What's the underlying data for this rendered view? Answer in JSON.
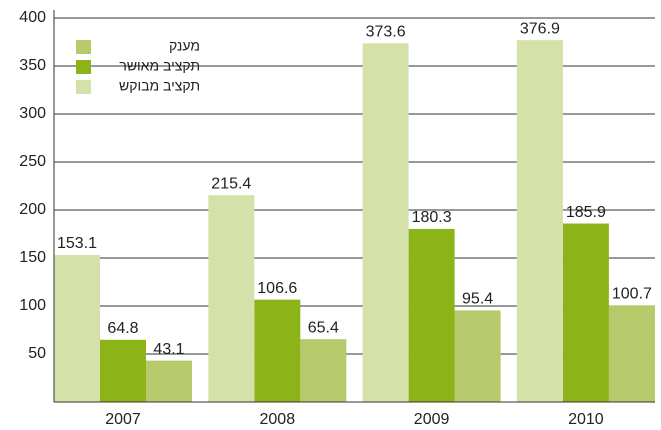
{
  "chart_data": {
    "type": "bar",
    "categories": [
      "2007",
      "2008",
      "2009",
      "2010"
    ],
    "series": [
      {
        "name": "מענק",
        "color": "#b6c96b",
        "values": [
          43.1,
          65.4,
          95.4,
          100.7
        ]
      },
      {
        "name": "תקציב מאושר",
        "color": "#8cb318",
        "values": [
          64.8,
          106.6,
          180.3,
          185.9
        ]
      },
      {
        "name": "תקציב מבוקש",
        "color": "#d4e1a8",
        "values": [
          153.1,
          215.4,
          373.6,
          376.9
        ]
      }
    ],
    "ylim": [
      0,
      400
    ],
    "yticks": [
      50,
      100,
      150,
      200,
      250,
      300,
      350,
      400
    ],
    "grid": true,
    "legend": "upper left"
  }
}
